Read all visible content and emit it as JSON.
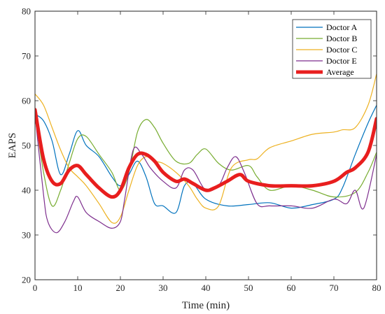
{
  "chart_data": {
    "type": "line",
    "xlabel": "Time (min)",
    "ylabel": "EAPS",
    "xlim": [
      0,
      80
    ],
    "ylim": [
      20,
      80
    ],
    "xticks": [
      0,
      10,
      20,
      30,
      40,
      50,
      60,
      70,
      80
    ],
    "yticks": [
      20,
      30,
      40,
      50,
      60,
      70,
      80
    ],
    "grid": false,
    "legend_position": "top-right",
    "series": [
      {
        "name": "Doctor A",
        "color": "#0072BD",
        "width": 1.2,
        "x": [
          0,
          2,
          4,
          6,
          8,
          10,
          12,
          15,
          18,
          20,
          22,
          24,
          26,
          28,
          30,
          33,
          35,
          37,
          40,
          45,
          50,
          55,
          60,
          65,
          70,
          72,
          75,
          78,
          80
        ],
        "y": [
          57,
          55.5,
          51,
          43.5,
          48,
          53.3,
          50,
          47.5,
          43,
          41,
          43.5,
          46.5,
          43,
          37,
          36.5,
          35,
          41,
          41.5,
          38,
          36.5,
          36.8,
          37.2,
          36,
          36.8,
          38,
          40.5,
          48,
          55,
          59
        ]
      },
      {
        "name": "Doctor B",
        "color": "#77AC30",
        "width": 1.2,
        "x": [
          0,
          2,
          4,
          6,
          8,
          10,
          12,
          15,
          18,
          20,
          22,
          24,
          26,
          28,
          30,
          33,
          36,
          38,
          40,
          43,
          46,
          50,
          52,
          55,
          60,
          65,
          70,
          75,
          78,
          80
        ],
        "y": [
          57,
          44,
          36.5,
          40,
          46,
          51.5,
          52,
          48,
          44,
          40,
          44,
          53,
          55.8,
          54,
          50.5,
          46.5,
          46,
          48,
          49.2,
          46,
          44.5,
          45.5,
          43,
          40,
          41,
          40,
          38.5,
          39.5,
          44,
          48.5
        ]
      },
      {
        "name": "Doctor C",
        "color": "#EDB120",
        "width": 1.2,
        "x": [
          0,
          2,
          4,
          6,
          8,
          10,
          12,
          15,
          18,
          20,
          22,
          24,
          26,
          28,
          30,
          33,
          36,
          38,
          40,
          43,
          46,
          50,
          52,
          55,
          60,
          65,
          70,
          72,
          75,
          78,
          80
        ],
        "y": [
          61.5,
          59,
          54,
          49,
          45,
          43,
          41,
          37,
          32.8,
          34,
          40,
          45.5,
          47.5,
          46.5,
          46,
          44,
          41,
          38,
          36,
          36.5,
          45,
          46.8,
          47,
          49.5,
          51,
          52.5,
          53,
          53.5,
          54,
          59,
          66
        ]
      },
      {
        "name": "Doctor E",
        "color": "#7E2F8E",
        "width": 1.2,
        "x": [
          0,
          2,
          3,
          5,
          7,
          9,
          10,
          12,
          15,
          18,
          20,
          21,
          23,
          25,
          27,
          30,
          33,
          35,
          37,
          40,
          43,
          45,
          47,
          49,
          52,
          55,
          60,
          65,
          70,
          73,
          75,
          77,
          80
        ],
        "y": [
          57,
          39,
          33,
          30.5,
          33,
          37.5,
          38.5,
          35,
          33,
          31.5,
          33,
          38,
          49,
          48,
          45,
          42,
          40.5,
          44.5,
          44.5,
          40,
          41,
          45,
          47.5,
          44,
          37,
          36.5,
          36.5,
          36,
          38,
          37,
          40,
          36,
          48
        ]
      },
      {
        "name": "Average",
        "color": "#E81E1E",
        "width": 5,
        "x": [
          0,
          2,
          4,
          6,
          8,
          10,
          12,
          15,
          18,
          20,
          22,
          24,
          26,
          28,
          30,
          33,
          35,
          37,
          40,
          42,
          45,
          48,
          50,
          55,
          60,
          65,
          70,
          73,
          75,
          78,
          80
        ],
        "y": [
          58,
          47,
          42,
          41.5,
          44.5,
          45.5,
          43.5,
          40.5,
          38.5,
          40,
          45,
          48,
          48,
          46.5,
          44,
          42,
          42.5,
          41.5,
          40,
          40.5,
          42,
          43.5,
          42,
          41,
          41,
          41,
          42,
          44,
          45,
          48.5,
          56
        ]
      }
    ]
  }
}
